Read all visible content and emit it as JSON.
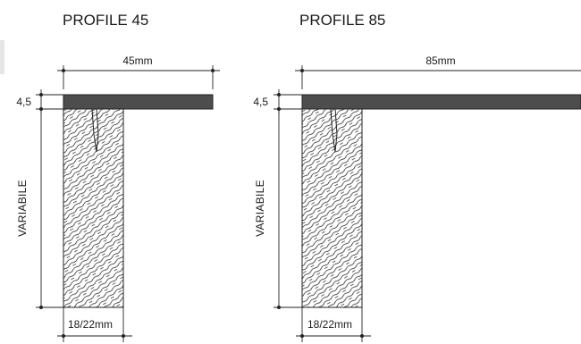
{
  "profiles": [
    {
      "title": "PROFILE 45",
      "width_label": "45mm",
      "thickness_label": "4,5",
      "height_label": "VARIABILE",
      "base_label": "18/22mm"
    },
    {
      "title": "PROFILE 85",
      "width_label": "85mm",
      "thickness_label": "4,5",
      "height_label": "VARIABILE",
      "base_label": "18/22mm"
    }
  ],
  "colors": {
    "strip": "#4d4d4d",
    "lines": "#222222",
    "hatch": "#333333"
  }
}
